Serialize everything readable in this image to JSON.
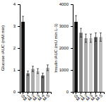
{
  "chart_data": [
    {
      "type": "bar",
      "y_label": "Glucose iAUC (mM min)",
      "categories": [
        "G",
        "M-1",
        "M-2",
        "M-3",
        "M-4",
        "M-5"
      ],
      "values": [
        3.2,
        0.85,
        1.05,
        0.95,
        0.75,
        1.1
      ],
      "errors": [
        0.25,
        0.1,
        0.12,
        0.11,
        0.1,
        0.13
      ],
      "colors": [
        "#111111",
        "#888888",
        "#aaaaaa",
        "#cccccc",
        "#666666",
        "#bbbbbb"
      ],
      "ylim": [
        0,
        4.0
      ],
      "yticks": [
        0,
        1,
        2,
        3,
        4
      ]
    },
    {
      "type": "bar",
      "y_label": "Insulin iAUC (mU min L-1)",
      "categories": [
        "G",
        "M-1",
        "M-2",
        "M-3",
        "M-4",
        "M-5"
      ],
      "values": [
        3200,
        2700,
        2450,
        2450,
        2500,
        2500
      ],
      "errors": [
        280,
        200,
        190,
        190,
        190,
        190
      ],
      "colors": [
        "#111111",
        "#888888",
        "#aaaaaa",
        "#cccccc",
        "#666666",
        "#bbbbbb"
      ],
      "ylim": [
        0,
        4000
      ],
      "yticks": [
        0,
        1000,
        2000,
        3000,
        4000
      ]
    }
  ]
}
